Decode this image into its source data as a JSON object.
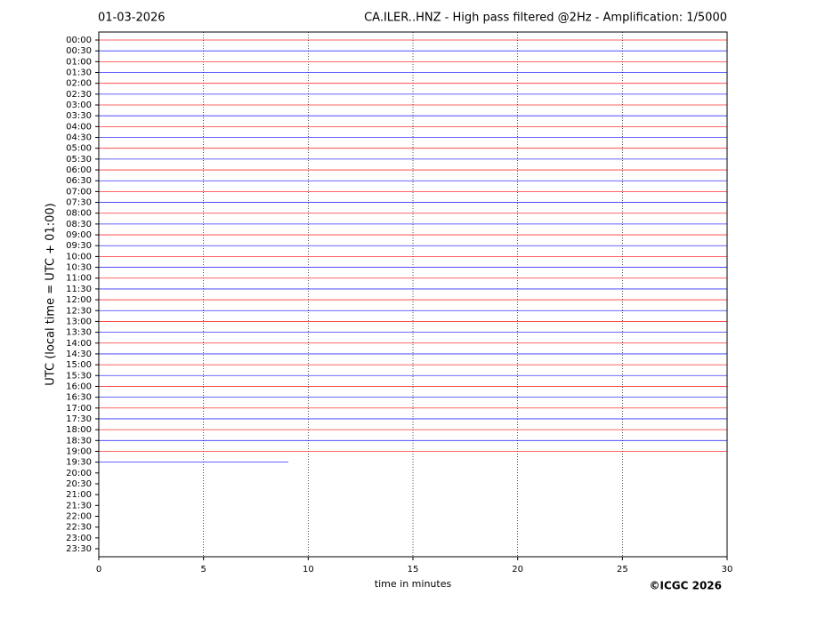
{
  "chart_data": {
    "type": "helicorder",
    "title_left": "01-03-2026",
    "title": "CA.ILER..HNZ - High pass filtered @2Hz - Amplification: 1/5000",
    "ylabel": "UTC (local time = UTC + 01:00)",
    "xlabel": "time in minutes",
    "copyright": "©ICGC 2026",
    "categories": [
      "00:00",
      "00:30",
      "01:00",
      "01:30",
      "02:00",
      "02:30",
      "03:00",
      "03:30",
      "04:00",
      "04:30",
      "05:00",
      "05:30",
      "06:00",
      "06:30",
      "07:00",
      "07:30",
      "08:00",
      "08:30",
      "09:00",
      "09:30",
      "10:00",
      "10:30",
      "11:00",
      "11:30",
      "12:00",
      "12:30",
      "13:00",
      "13:30",
      "14:00",
      "14:30",
      "15:00",
      "15:30",
      "16:00",
      "16:30",
      "17:00",
      "17:30",
      "18:00",
      "18:30",
      "19:00",
      "19:30",
      "20:00",
      "20:30",
      "21:00",
      "21:30",
      "22:00",
      "22:30",
      "23:00",
      "23:30"
    ],
    "values": [
      30,
      30,
      30,
      30,
      30,
      30,
      30,
      30,
      30,
      30,
      30,
      30,
      30,
      30,
      30,
      30,
      30,
      30,
      30,
      30,
      30,
      30,
      30,
      30,
      30,
      30,
      30,
      30,
      30,
      30,
      30,
      30,
      30,
      30,
      30,
      30,
      30,
      30,
      30,
      9.05,
      null,
      null,
      null,
      null,
      null,
      null,
      null,
      null
    ],
    "colors": [
      "#ff0000",
      "#0000ff"
    ],
    "xlim": [
      0,
      30
    ],
    "xticks": [
      0,
      5,
      10,
      15,
      20,
      25,
      30
    ],
    "grid": true
  }
}
